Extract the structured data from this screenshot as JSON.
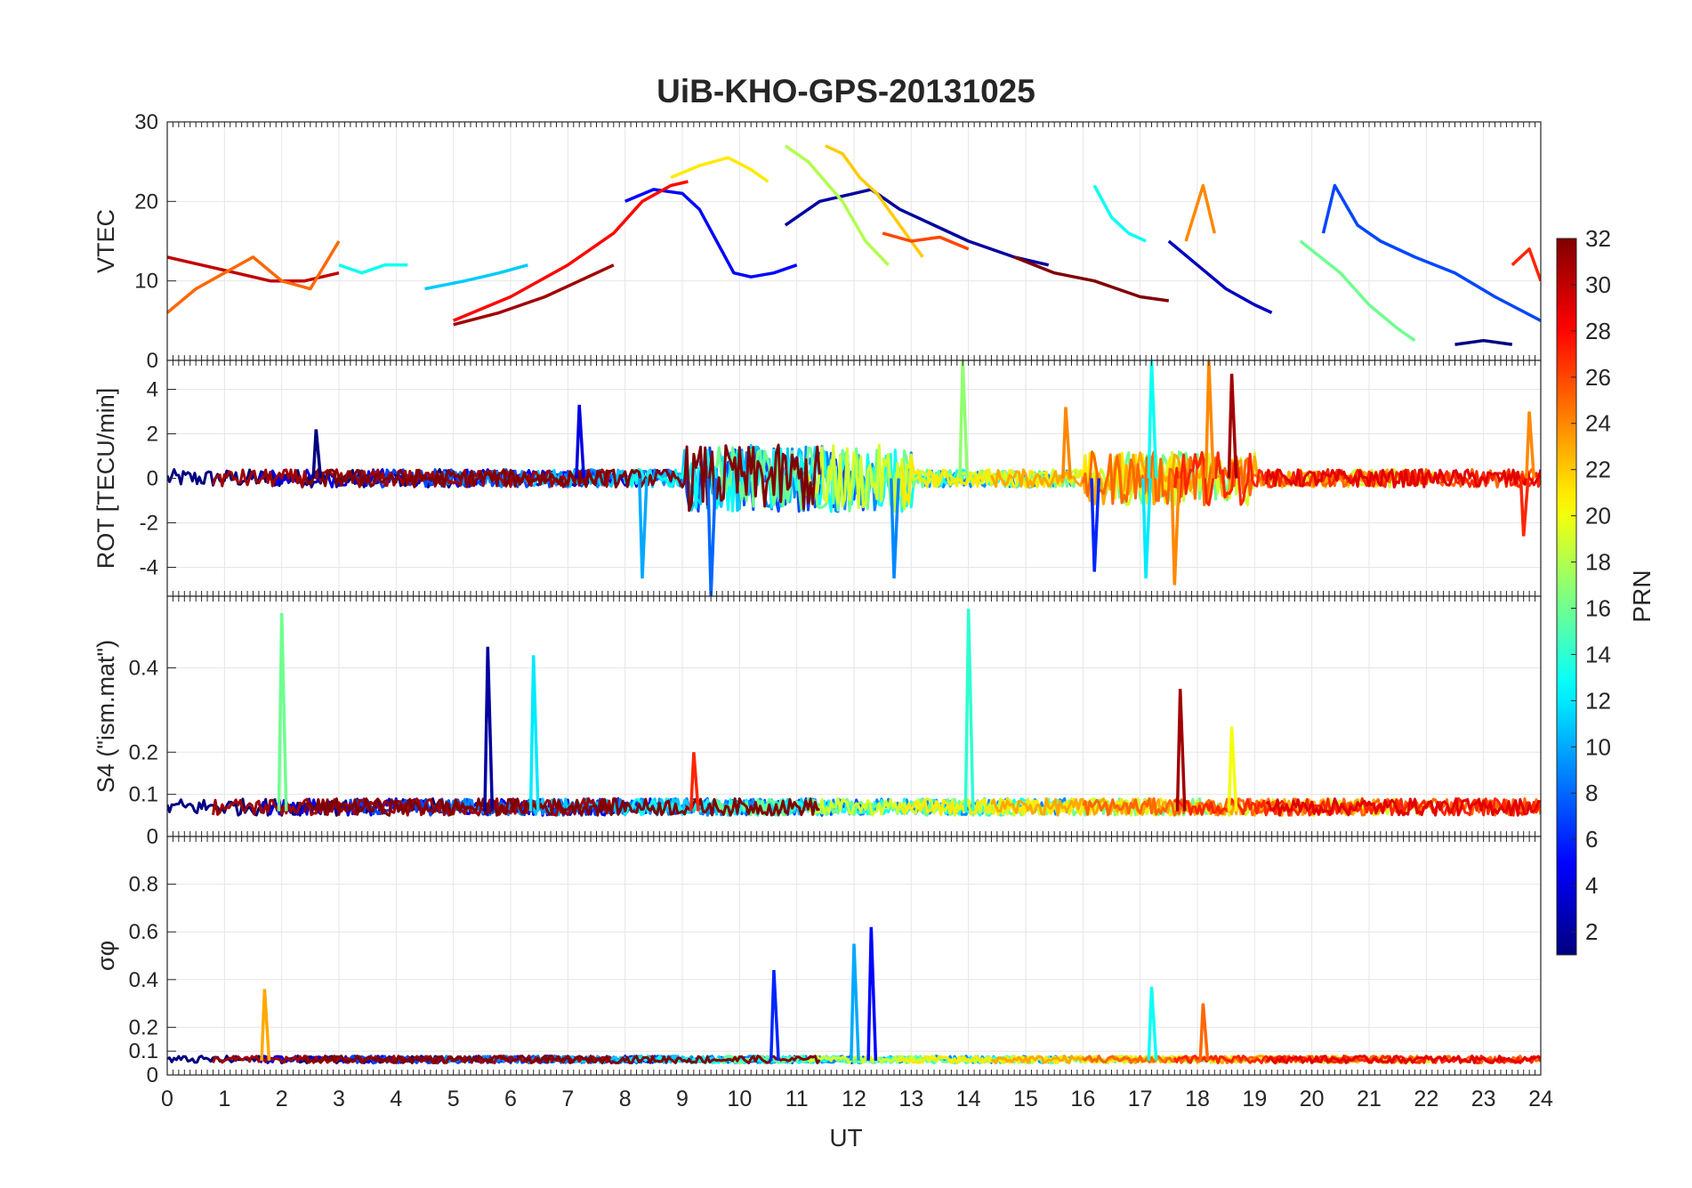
{
  "figure": {
    "title": "UiB-KHO-GPS-20131025",
    "xlabel": "UT"
  },
  "chart_data": [
    {
      "type": "line",
      "ylabel": "VTEC",
      "xlim": [
        0,
        24
      ],
      "ylim": [
        0,
        30
      ],
      "yticks": [
        0,
        10,
        20,
        30
      ],
      "xticks": [
        0,
        1,
        2,
        3,
        4,
        5,
        6,
        7,
        8,
        9,
        10,
        11,
        12,
        13,
        14,
        15,
        16,
        17,
        18,
        19,
        20,
        21,
        22,
        23,
        24
      ],
      "grid": true,
      "series": [
        {
          "prn": 2,
          "x": [
            10.8,
            11.4,
            12.0,
            12.3,
            12.8,
            13.4,
            14.0,
            14.8,
            15.4
          ],
          "y": [
            17,
            20,
            21,
            21.5,
            19,
            17,
            15,
            13,
            12
          ]
        },
        {
          "prn": 5,
          "x": [
            8.0,
            8.5,
            9.0,
            9.3,
            9.6,
            9.9,
            10.2,
            10.6,
            11.0
          ],
          "y": [
            20,
            21.5,
            21,
            19,
            15,
            11,
            10.5,
            11,
            12
          ]
        },
        {
          "prn": 28,
          "x": [
            5.0,
            6.0,
            7.0,
            7.8,
            8.3,
            8.8,
            9.1
          ],
          "y": [
            5,
            8,
            12,
            16,
            20,
            22,
            22.5
          ]
        },
        {
          "prn": 31,
          "x": [
            5.0,
            5.8,
            6.6,
            7.2,
            7.8
          ],
          "y": [
            4.5,
            6,
            8,
            10,
            12
          ]
        },
        {
          "prn": 21,
          "x": [
            8.8,
            9.3,
            9.8,
            10.2,
            10.5
          ],
          "y": [
            23,
            24.5,
            25.5,
            24,
            22.5
          ]
        },
        {
          "prn": 22,
          "x": [
            11.5,
            11.8,
            12.1,
            12.4,
            12.8,
            13.2
          ],
          "y": [
            27,
            26,
            23,
            21,
            17,
            13
          ]
        },
        {
          "prn": 18,
          "x": [
            10.8,
            11.2,
            11.8,
            12.2,
            12.6
          ],
          "y": [
            27,
            25,
            20,
            15,
            12
          ]
        },
        {
          "prn": 13,
          "x": [
            16.2,
            16.5,
            16.8,
            17.1
          ],
          "y": [
            22,
            18,
            16,
            15
          ]
        },
        {
          "prn": 26,
          "x": [
            12.5,
            13.0,
            13.5,
            14.0
          ],
          "y": [
            16,
            15,
            15.5,
            14
          ]
        },
        {
          "prn": 3,
          "x": [
            17.5,
            18.0,
            18.5,
            19.0,
            19.3
          ],
          "y": [
            15,
            12,
            9,
            7,
            6
          ]
        },
        {
          "prn": 7,
          "x": [
            20.2,
            20.4,
            20.8,
            21.2,
            21.8,
            22.5,
            23.2,
            24.0
          ],
          "y": [
            16,
            22,
            17,
            15,
            13,
            11,
            8,
            5
          ]
        },
        {
          "prn": 16,
          "x": [
            19.8,
            20.5,
            21.0,
            21.5,
            21.8
          ],
          "y": [
            15,
            11,
            7,
            4,
            2.5
          ]
        },
        {
          "prn": 32,
          "x": [
            14.8,
            15.5,
            16.2,
            17.0,
            17.5
          ],
          "y": [
            13,
            11,
            10,
            8,
            7.5
          ]
        },
        {
          "prn": 24,
          "x": [
            17.8,
            18.1,
            18.3
          ],
          "y": [
            15,
            22,
            16
          ]
        },
        {
          "prn": 1,
          "x": [
            22.5,
            23.0,
            23.5
          ],
          "y": [
            2,
            2.5,
            2
          ]
        },
        {
          "prn": 27,
          "x": [
            23.5,
            23.8,
            24.0
          ],
          "y": [
            12,
            14,
            10
          ]
        },
        {
          "prn": 30,
          "x": [
            0,
            0.6,
            1.2,
            1.8,
            2.4,
            3.0
          ],
          "y": [
            13,
            12,
            11,
            10,
            10,
            11
          ]
        },
        {
          "prn": 25,
          "x": [
            0,
            0.5,
            1.0,
            1.5,
            2.0,
            2.5,
            3.0
          ],
          "y": [
            6,
            9,
            11,
            13,
            10,
            9,
            15
          ]
        },
        {
          "prn": 11,
          "x": [
            4.5,
            5.2,
            5.8,
            6.3
          ],
          "y": [
            9,
            10,
            11,
            12
          ]
        },
        {
          "prn": 13,
          "x": [
            3.0,
            3.4,
            3.8,
            4.2
          ],
          "y": [
            12,
            11,
            12,
            12
          ]
        }
      ]
    },
    {
      "type": "line",
      "ylabel": "ROT [TECU/min]",
      "xlim": [
        0,
        24
      ],
      "ylim": [
        -5.3,
        5.3
      ],
      "yticks": [
        -4,
        -2,
        0,
        2,
        4
      ],
      "grid": true,
      "note_spikes": [
        {
          "prn": 1,
          "x": 2.6,
          "y": 2.2
        },
        {
          "prn": 4,
          "x": 7.2,
          "y": 3.3
        },
        {
          "prn": 8,
          "x": 9.5,
          "y": -5.3
        },
        {
          "prn": 10,
          "x": 8.3,
          "y": -4.5
        },
        {
          "prn": 9,
          "x": 12.7,
          "y": -4.5
        },
        {
          "prn": 17,
          "x": 13.9,
          "y": 5.3
        },
        {
          "prn": 24,
          "x": 15.7,
          "y": 3.2
        },
        {
          "prn": 13,
          "x": 17.2,
          "y": 5.3
        },
        {
          "prn": 24,
          "x": 18.2,
          "y": 5.3
        },
        {
          "prn": 31,
          "x": 18.6,
          "y": 4.7
        },
        {
          "prn": 24,
          "x": 17.6,
          "y": -4.8
        },
        {
          "prn": 6,
          "x": 16.2,
          "y": -4.2
        },
        {
          "prn": 12,
          "x": 17.1,
          "y": -4.5
        },
        {
          "prn": 27,
          "x": 23.7,
          "y": -2.6
        },
        {
          "prn": 24,
          "x": 23.8,
          "y": 3.0
        }
      ]
    },
    {
      "type": "line",
      "ylabel": "S4 (\"ism.mat\")",
      "xlim": [
        0,
        24
      ],
      "ylim": [
        0,
        0.57
      ],
      "yticks": [
        0,
        0.1,
        0.2,
        0.4
      ],
      "grid": true,
      "note_spikes": [
        {
          "prn": 16,
          "x": 2.0,
          "y": 0.53
        },
        {
          "prn": 2,
          "x": 5.6,
          "y": 0.45
        },
        {
          "prn": 12,
          "x": 6.4,
          "y": 0.43
        },
        {
          "prn": 14,
          "x": 14.0,
          "y": 0.54
        },
        {
          "prn": 31,
          "x": 17.7,
          "y": 0.35
        },
        {
          "prn": 27,
          "x": 9.2,
          "y": 0.2
        },
        {
          "prn": 20,
          "x": 18.6,
          "y": 0.26
        }
      ]
    },
    {
      "type": "line",
      "ylabel": "σφ",
      "xlim": [
        0,
        24
      ],
      "ylim": [
        0,
        1.0
      ],
      "yticks": [
        0,
        0.1,
        0.2,
        0.4,
        0.6,
        0.8
      ],
      "grid": true,
      "note_spikes": [
        {
          "prn": 23,
          "x": 1.7,
          "y": 0.36
        },
        {
          "prn": 6,
          "x": 10.6,
          "y": 0.44
        },
        {
          "prn": 10,
          "x": 12.0,
          "y": 0.55
        },
        {
          "prn": 5,
          "x": 12.3,
          "y": 0.62
        },
        {
          "prn": 13,
          "x": 17.2,
          "y": 0.37
        },
        {
          "prn": 25,
          "x": 18.1,
          "y": 0.3
        }
      ]
    }
  ],
  "colorbar": {
    "label": "PRN",
    "range": [
      1,
      32
    ],
    "ticks": [
      2,
      4,
      6,
      8,
      10,
      12,
      14,
      16,
      18,
      20,
      22,
      24,
      26,
      28,
      30,
      32
    ],
    "colormap": "jet"
  }
}
